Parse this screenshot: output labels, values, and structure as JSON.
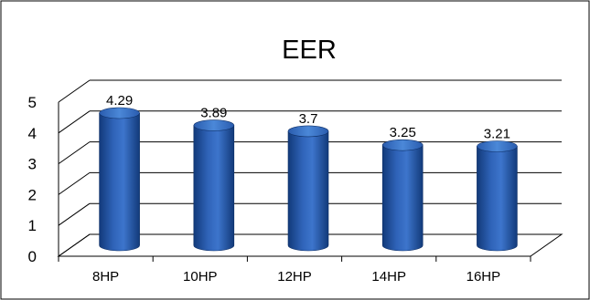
{
  "chart_data": {
    "type": "bar",
    "title": "EER",
    "categories": [
      "8HP",
      "10HP",
      "12HP",
      "14HP",
      "16HP"
    ],
    "values": [
      4.29,
      3.89,
      3.7,
      3.25,
      3.21
    ],
    "value_labels": [
      "4.29",
      "3.89",
      "3.7",
      "3.25",
      "3.21"
    ],
    "ylim": [
      0,
      5
    ],
    "yticks": [
      "0",
      "1",
      "2",
      "3",
      "4",
      "5"
    ],
    "grid": true,
    "style": "3d-cylinder",
    "bar_color": "#1f4e9e",
    "bar_highlight": "#4a86d6",
    "bar_dark": "#123a7a"
  }
}
